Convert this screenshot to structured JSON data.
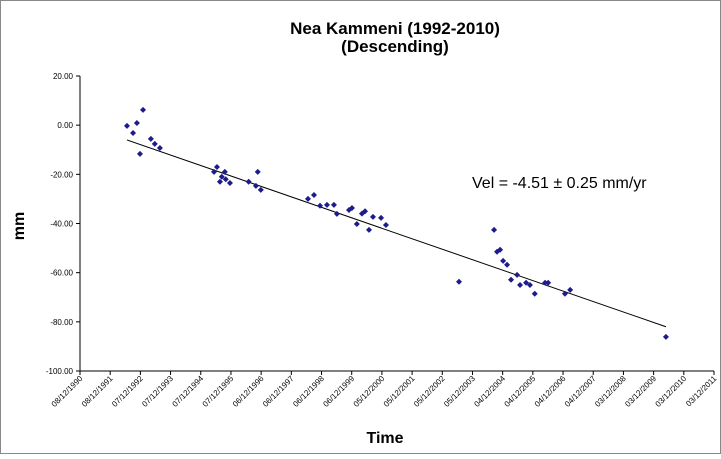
{
  "chart_data": {
    "type": "scatter",
    "title": "Nea Kammeni (1992-2010)",
    "subtitle": "(Descending)",
    "x_label": "Time",
    "y_label": "mm",
    "annotation": "Vel = -4.51 ± 0.25 mm/yr",
    "color": "#1c1c8a",
    "x": [
      "1992-06-28",
      "1992-09-09",
      "1992-10-26",
      "1992-12-02",
      "1993-01-08",
      "1993-04-13",
      "1993-05-30",
      "1993-07-31",
      "1995-05-16",
      "1995-06-21",
      "1995-07-27",
      "1995-08-18",
      "1995-09-24",
      "1995-10-05",
      "1995-11-25",
      "1996-07-08",
      "1996-10-04",
      "1996-10-26",
      "1996-12-02",
      "1998-06-25",
      "1998-09-06",
      "1998-11-18",
      "1999-02-10",
      "1999-05-05",
      "1999-06-10",
      "1999-11-03",
      "1999-12-09",
      "2000-02-06",
      "2000-04-08",
      "2000-05-15",
      "2000-07-02",
      "2000-08-19",
      "2000-11-25",
      "2001-01-23",
      "2003-06-25",
      "2004-08-22",
      "2004-09-27",
      "2004-11-03",
      "2004-12-09",
      "2005-01-26",
      "2005-03-15",
      "2005-05-27",
      "2005-07-02",
      "2005-09-13",
      "2005-10-30",
      "2005-12-27",
      "2006-05-01",
      "2006-06-07",
      "2006-12-27",
      "2007-02-28",
      "2010-05-01"
    ],
    "values": [
      -0.3,
      -3.2,
      0.9,
      -11.7,
      6.2,
      -5.6,
      -7.6,
      -9.3,
      -19,
      -17,
      -23,
      -21,
      -19,
      -22,
      -23.5,
      -23,
      -24.7,
      -19,
      -26.3,
      -30,
      -28.4,
      -32.8,
      -32.4,
      -32.4,
      -36.1,
      -34.5,
      -33.7,
      -40.2,
      -36,
      -35,
      -42.6,
      -37.3,
      -37.7,
      -40.6,
      -63.7,
      -42.6,
      -51.5,
      -50.7,
      -55.2,
      -56.8,
      -62.9,
      -60.9,
      -65,
      -64.1,
      -65,
      -68.6,
      -64.1,
      -64.1,
      -68.6,
      -67,
      -86.1
    ],
    "trendline": {
      "x": [
        "1992-06-28",
        "2010-05-01"
      ],
      "values": [
        -6,
        -82
      ],
      "color": "#000000"
    },
    "xlim": [
      "1990-12-08",
      "2011-12-03"
    ],
    "xticks": [
      {
        "value": "1990-12-08",
        "label": "08/12/1990"
      },
      {
        "value": "1991-12-08",
        "label": "08/12/1991"
      },
      {
        "value": "1992-12-07",
        "label": "07/12/1992"
      },
      {
        "value": "1993-12-07",
        "label": "07/12/1993"
      },
      {
        "value": "1994-12-07",
        "label": "07/12/1994"
      },
      {
        "value": "1995-12-07",
        "label": "07/12/1995"
      },
      {
        "value": "1996-12-06",
        "label": "06/12/1996"
      },
      {
        "value": "1997-12-06",
        "label": "06/12/1997"
      },
      {
        "value": "1998-12-06",
        "label": "06/12/1998"
      },
      {
        "value": "1999-12-06",
        "label": "06/12/1999"
      },
      {
        "value": "2000-12-05",
        "label": "05/12/2000"
      },
      {
        "value": "2001-12-05",
        "label": "05/12/2001"
      },
      {
        "value": "2002-12-05",
        "label": "05/12/2002"
      },
      {
        "value": "2003-12-05",
        "label": "05/12/2003"
      },
      {
        "value": "2004-12-04",
        "label": "04/12/2004"
      },
      {
        "value": "2005-12-04",
        "label": "04/12/2005"
      },
      {
        "value": "2006-12-04",
        "label": "04/12/2006"
      },
      {
        "value": "2007-12-04",
        "label": "04/12/2007"
      },
      {
        "value": "2008-12-03",
        "label": "03/12/2008"
      },
      {
        "value": "2009-12-03",
        "label": "03/12/2009"
      },
      {
        "value": "2010-12-03",
        "label": "03/12/2010"
      },
      {
        "value": "2011-12-03",
        "label": "03/12/2011"
      }
    ],
    "ylim": [
      -100,
      20
    ],
    "yticks": [
      {
        "value": 20,
        "label": "20.00"
      },
      {
        "value": 0,
        "label": "0.00"
      },
      {
        "value": -20,
        "label": "-20.00"
      },
      {
        "value": -40,
        "label": "-40.00"
      },
      {
        "value": -60,
        "label": "-60.00"
      },
      {
        "value": -80,
        "label": "-80.00"
      },
      {
        "value": -100,
        "label": "-100.00"
      }
    ],
    "grid": false
  }
}
